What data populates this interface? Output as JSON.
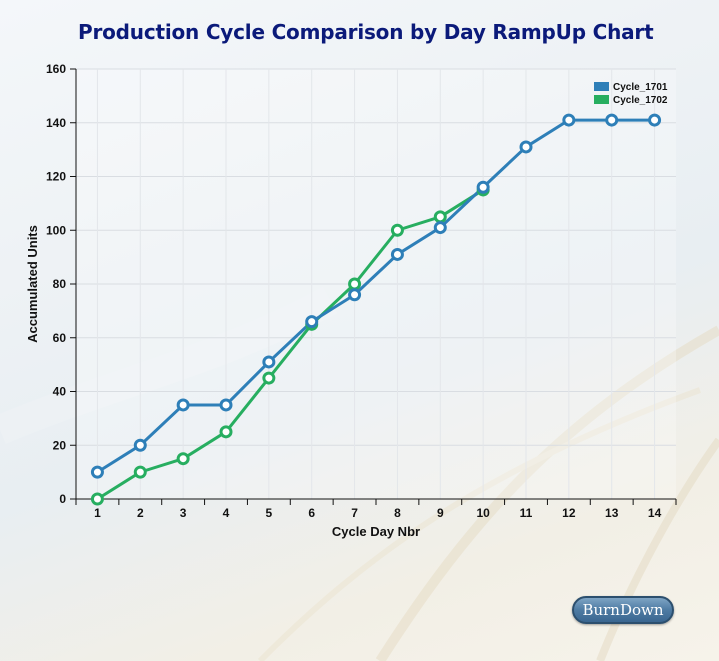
{
  "chart_data": {
    "type": "line",
    "title": "Production Cycle Comparison by Day RampUp Chart",
    "xlabel": "Cycle Day Nbr",
    "ylabel": "Accumulated Units",
    "x": [
      1,
      2,
      3,
      4,
      5,
      6,
      7,
      8,
      9,
      10,
      11,
      12,
      13,
      14
    ],
    "ylim": [
      0,
      160
    ],
    "yticks": [
      0,
      20,
      40,
      60,
      80,
      100,
      120,
      140,
      160
    ],
    "grid": true,
    "legend_position": "top-right",
    "series": [
      {
        "name": "Cycle_1701",
        "color": "#2e7fb8",
        "x": [
          1,
          2,
          3,
          4,
          5,
          6,
          7,
          8,
          9,
          10,
          11,
          12,
          13,
          14
        ],
        "values": [
          10,
          20,
          35,
          35,
          51,
          66,
          76,
          91,
          101,
          116,
          131,
          141,
          141,
          141
        ]
      },
      {
        "name": "Cycle_1702",
        "color": "#27ae60",
        "x": [
          1,
          2,
          3,
          4,
          5,
          6,
          7,
          8,
          9,
          10
        ],
        "values": [
          0,
          10,
          15,
          25,
          45,
          65,
          80,
          100,
          105,
          115
        ]
      }
    ]
  },
  "buttons": {
    "burndown_label": "BurnDown"
  }
}
